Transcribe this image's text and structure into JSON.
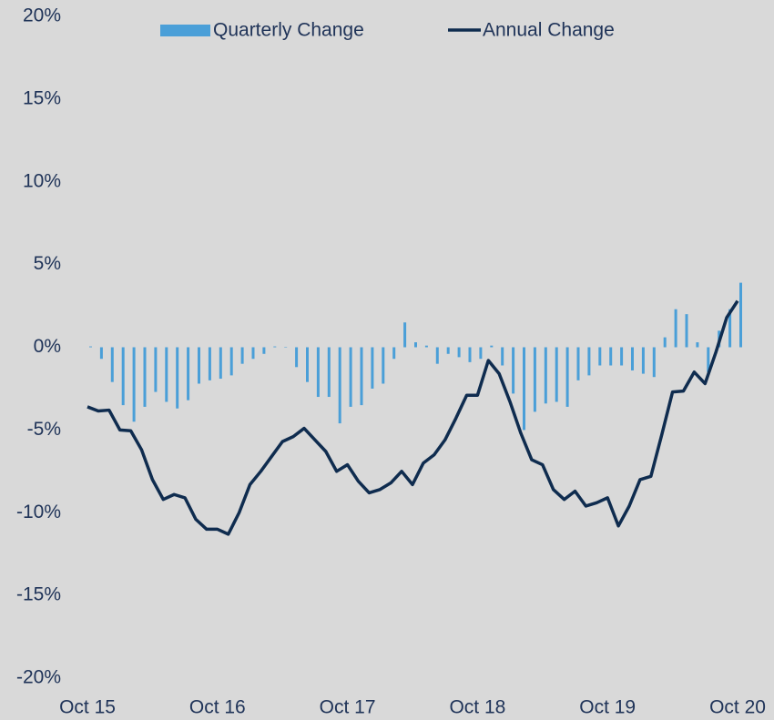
{
  "chart_data": {
    "type": "bar_line",
    "categories": [
      "Oct 15",
      null,
      null,
      null,
      null,
      null,
      null,
      null,
      null,
      null,
      null,
      null,
      "Oct 16",
      null,
      null,
      null,
      null,
      null,
      null,
      null,
      null,
      null,
      null,
      null,
      "Oct 17",
      null,
      null,
      null,
      null,
      null,
      null,
      null,
      null,
      null,
      null,
      null,
      "Oct 18",
      null,
      null,
      null,
      null,
      null,
      null,
      null,
      null,
      null,
      null,
      null,
      "Oct 19",
      null,
      null,
      null,
      null,
      null,
      null,
      null,
      null,
      null,
      null,
      null,
      "Oct 20"
    ],
    "series": [
      {
        "name": "Quarterly Change",
        "type": "bar",
        "color": "#4a9fd8",
        "values": [
          0.05,
          -0.7,
          -2.1,
          -3.5,
          -4.5,
          -3.6,
          -2.7,
          -3.3,
          -3.7,
          -3.2,
          -2.2,
          -2.0,
          -1.9,
          -1.7,
          -1.0,
          -0.7,
          -0.4,
          0.05,
          0,
          -1.2,
          -2.1,
          -3.0,
          -3.0,
          -4.6,
          -3.6,
          -3.5,
          -2.5,
          -2.2,
          -0.7,
          1.5,
          0.3,
          0.1,
          -1.0,
          -0.4,
          -0.6,
          -0.9,
          -0.7,
          0.1,
          -1.1,
          -2.8,
          -5.0,
          -3.9,
          -3.4,
          -3.3,
          -3.6,
          -2.0,
          -1.7,
          -1.1,
          -1.1,
          -1.1,
          -1.4,
          -1.6,
          -1.8,
          0.6,
          2.3,
          2.0,
          0.3,
          -1.5,
          1.0,
          2.3,
          3.9
        ]
      },
      {
        "name": "Annual Change",
        "type": "line",
        "color": "#0f2c4f",
        "values": [
          -3.6,
          -3.85,
          -3.8,
          -5.0,
          -5.05,
          -6.2,
          -8.0,
          -9.2,
          -8.9,
          -9.1,
          -10.4,
          -11.0,
          -11.0,
          -11.3,
          -10.0,
          -8.3,
          -7.5,
          -6.6,
          -5.7,
          -5.4,
          -4.9,
          -5.6,
          -6.3,
          -7.5,
          -7.1,
          -8.1,
          -8.8,
          -8.6,
          -8.2,
          -7.5,
          -8.3,
          -7.0,
          -6.5,
          -5.6,
          -4.3,
          -2.9,
          -2.9,
          -0.8,
          -1.6,
          -3.3,
          -5.2,
          -6.8,
          -7.1,
          -8.6,
          -9.2,
          -8.7,
          -9.6,
          -9.4,
          -9.1,
          -10.8,
          -9.6,
          -8.0,
          -7.8,
          -5.3,
          -2.7,
          -2.65,
          -1.5,
          -2.2,
          -0.3,
          1.8,
          2.8
        ]
      }
    ],
    "ylim": [
      -20,
      20
    ],
    "yticks": [
      {
        "value": -20,
        "label": "-20%"
      },
      {
        "value": -15,
        "label": "-15%"
      },
      {
        "value": -10,
        "label": "-10%"
      },
      {
        "value": -5,
        "label": "-5%"
      },
      {
        "value": 0,
        "label": "0%"
      },
      {
        "value": 5,
        "label": "5%"
      },
      {
        "value": 10,
        "label": "10%"
      },
      {
        "value": 15,
        "label": "15%"
      },
      {
        "value": 20,
        "label": "20%"
      }
    ],
    "grid": false,
    "legend": "top"
  }
}
